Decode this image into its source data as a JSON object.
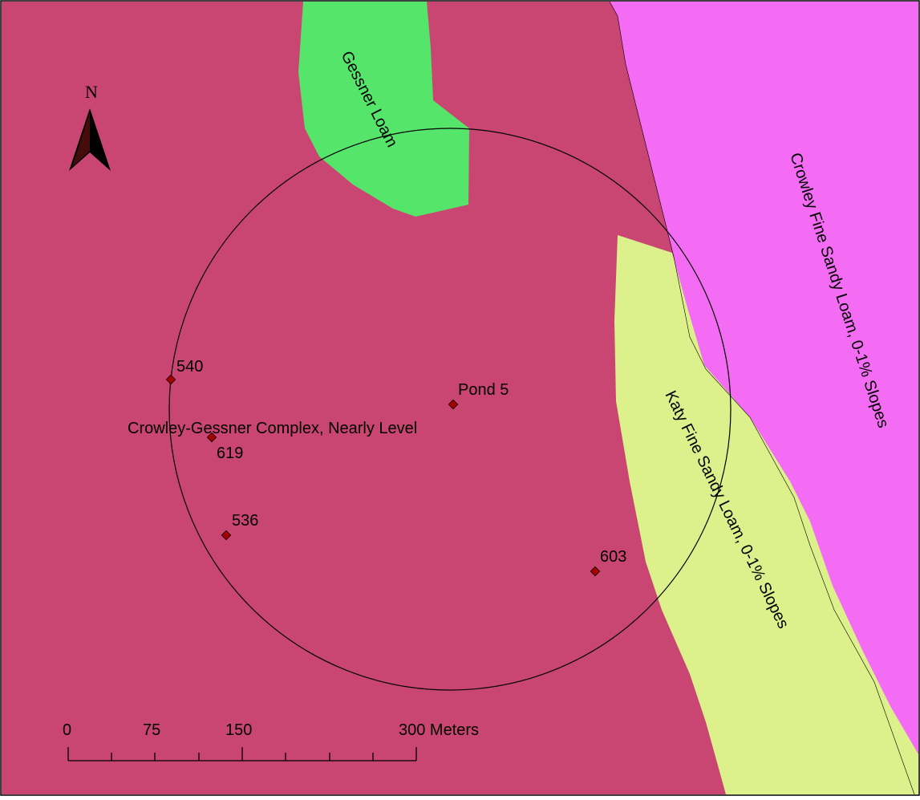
{
  "map": {
    "colors": {
      "crowley_gessner": "#C94672",
      "gessner_loam": "#55E56A",
      "crowley_fine_sandy_loam": "#F46BF4",
      "katy_fine_sandy_loam": "#DCF18C",
      "point_fill": "#A80000",
      "outline": "#000000"
    },
    "soil_labels": {
      "gessner_loam": "Gessner Loam",
      "crowley_fine_sandy_loam": "Crowley Fine Sandy Loam, 0-1% Slopes",
      "katy_fine_sandy_loam": "Katy Fine Sandy Loam, 0-1% Slopes",
      "crowley_gessner_complex": "Crowley-Gessner Complex, Nearly Level"
    },
    "points": [
      {
        "id": "pond",
        "label": "Pond 5"
      },
      {
        "id": "p540",
        "label": "540"
      },
      {
        "id": "p619",
        "label": "619"
      },
      {
        "id": "p536",
        "label": "536"
      },
      {
        "id": "p603",
        "label": "603"
      }
    ],
    "north_arrow": {
      "label": "N",
      "icon": "north-arrow-icon"
    },
    "scale_bar": {
      "labels": [
        "0",
        "75",
        "150",
        "300 Meters"
      ]
    }
  }
}
